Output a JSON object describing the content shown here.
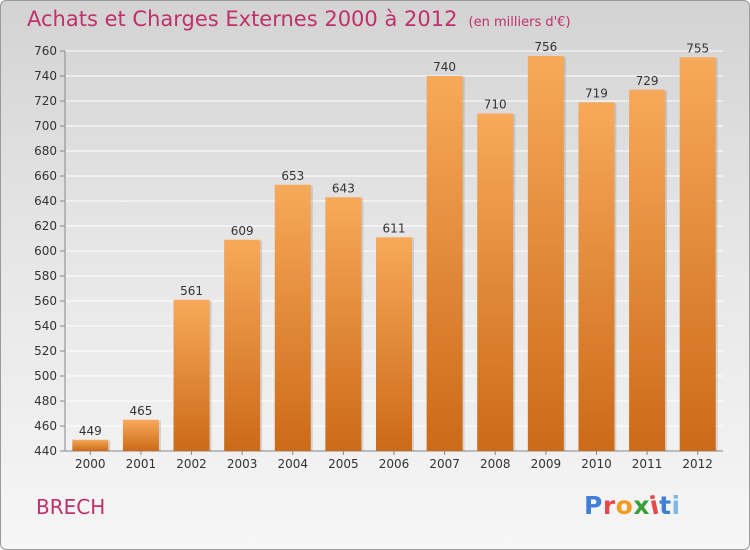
{
  "header": {
    "title": "Achats et Charges Externes 2000 à 2012",
    "unit": "(en milliers d'€)"
  },
  "commune": "BRECH",
  "logo": {
    "text": "Proxiti"
  },
  "colors": {
    "title": "#c0306a",
    "bar_top": "#f7a95a",
    "bar_bottom": "#cc6a18",
    "grid": "#ffffff",
    "logo_letters": [
      "#3f7fd8",
      "#e8484d",
      "#f39a22",
      "#3a9f3a",
      "#e8484d",
      "#3f7fd8",
      "#7cb8e8"
    ]
  },
  "chart_data": {
    "type": "bar",
    "categories": [
      "2000",
      "2001",
      "2002",
      "2003",
      "2004",
      "2005",
      "2006",
      "2007",
      "2008",
      "2009",
      "2010",
      "2011",
      "2012"
    ],
    "values": [
      449,
      465,
      561,
      609,
      653,
      643,
      611,
      740,
      710,
      756,
      719,
      729,
      755
    ],
    "ylim": [
      440,
      760
    ],
    "yticks": [
      440,
      460,
      480,
      500,
      520,
      540,
      560,
      580,
      600,
      620,
      640,
      660,
      680,
      700,
      720,
      740,
      760
    ],
    "grid": true,
    "xlabel": "",
    "ylabel": ""
  }
}
